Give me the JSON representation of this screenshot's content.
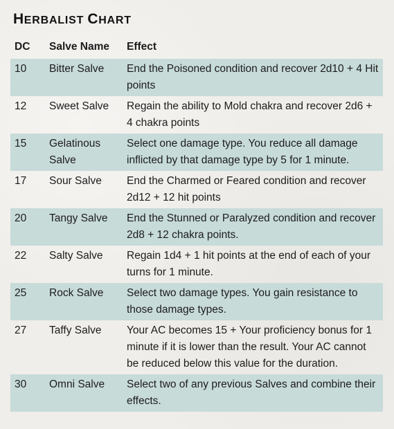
{
  "title": {
    "first": "H",
    "rest": "ERBALIST ",
    "second_first": "C",
    "second_rest": "HART"
  },
  "headers": {
    "dc": "DC",
    "name": "Salve Name",
    "effect": "Effect"
  },
  "rows": [
    {
      "dc": "10",
      "name": "Bitter Salve",
      "effect": "End the Poisoned condition and recover 2d10 + 4 Hit points"
    },
    {
      "dc": "12",
      "name": "Sweet Salve",
      "effect": "Regain the ability to Mold chakra and recover 2d6 + 4 chakra points"
    },
    {
      "dc": "15",
      "name": "Gelatinous Salve",
      "effect": "Select one damage type. You reduce all damage inflicted by that damage type by 5 for 1 minute."
    },
    {
      "dc": "17",
      "name": "Sour Salve",
      "effect": "End the Charmed or Feared condition and recover 2d12 + 12 hit points"
    },
    {
      "dc": "20",
      "name": "Tangy Salve",
      "effect": "End the Stunned or Paralyzed condition and recover 2d8 + 12 chakra points."
    },
    {
      "dc": "22",
      "name": "Salty Salve",
      "effect": "Regain 1d4 + 1 hit points at the end of each of your turns for 1 minute."
    },
    {
      "dc": "25",
      "name": "Rock Salve",
      "effect": "Select two damage types. You gain resistance to those damage types."
    },
    {
      "dc": "27",
      "name": "Taffy Salve",
      "effect": "Your AC becomes 15 + Your proficiency bonus for 1 minute if it is lower than the result. Your AC cannot be reduced below this value for the duration."
    },
    {
      "dc": "30",
      "name": "Omni Salve",
      "effect": "Select two of any previous Salves and combine their effects."
    }
  ],
  "colors": {
    "row_shade": "#c7dbd9",
    "background": "#f0eeea"
  }
}
